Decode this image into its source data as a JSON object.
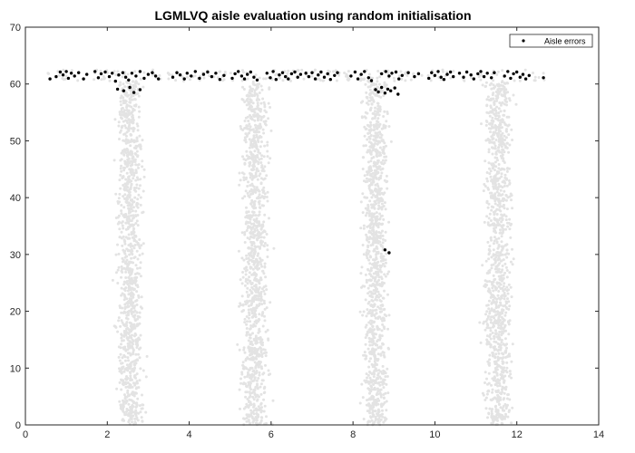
{
  "chart_data": {
    "type": "scatter",
    "title": "LGMLVQ aisle evaluation using random initialisation",
    "xlabel": "",
    "ylabel": "",
    "xlim": [
      0,
      14
    ],
    "ylim": [
      0,
      70
    ],
    "xticks": [
      0,
      2,
      4,
      6,
      8,
      10,
      12,
      14
    ],
    "yticks": [
      0,
      10,
      20,
      30,
      40,
      50,
      60,
      70
    ],
    "grid": false,
    "legend": {
      "position": "top-right",
      "entries": [
        "Aisle errors"
      ]
    },
    "series": [
      {
        "name": "Aisle errors",
        "color": "#000000",
        "points": [
          [
            0.6,
            60.9
          ],
          [
            0.75,
            61.3
          ],
          [
            0.85,
            62.1
          ],
          [
            0.92,
            61.6
          ],
          [
            1.0,
            62.2
          ],
          [
            1.05,
            61.0
          ],
          [
            1.12,
            61.9
          ],
          [
            1.2,
            61.4
          ],
          [
            1.3,
            62.0
          ],
          [
            1.42,
            60.9
          ],
          [
            1.5,
            61.7
          ],
          [
            1.7,
            62.2
          ],
          [
            1.78,
            61.1
          ],
          [
            1.85,
            61.8
          ],
          [
            1.95,
            62.1
          ],
          [
            2.05,
            61.3
          ],
          [
            2.12,
            61.9
          ],
          [
            2.2,
            60.5
          ],
          [
            2.28,
            61.6
          ],
          [
            2.38,
            62.0
          ],
          [
            2.45,
            61.2
          ],
          [
            2.52,
            60.7
          ],
          [
            2.6,
            61.9
          ],
          [
            2.7,
            61.4
          ],
          [
            2.8,
            62.2
          ],
          [
            2.9,
            61.0
          ],
          [
            3.0,
            61.7
          ],
          [
            3.1,
            62.0
          ],
          [
            3.18,
            61.4
          ],
          [
            3.25,
            60.9
          ],
          [
            2.25,
            59.1
          ],
          [
            2.4,
            58.8
          ],
          [
            2.55,
            59.4
          ],
          [
            2.65,
            58.5
          ],
          [
            2.8,
            59.0
          ],
          [
            3.6,
            61.2
          ],
          [
            3.7,
            62.0
          ],
          [
            3.78,
            61.6
          ],
          [
            3.88,
            60.9
          ],
          [
            3.95,
            61.9
          ],
          [
            4.05,
            61.4
          ],
          [
            4.15,
            62.2
          ],
          [
            4.25,
            61.0
          ],
          [
            4.35,
            61.7
          ],
          [
            4.45,
            62.1
          ],
          [
            4.55,
            61.3
          ],
          [
            4.65,
            61.9
          ],
          [
            4.75,
            60.8
          ],
          [
            4.85,
            61.5
          ],
          [
            5.05,
            61.0
          ],
          [
            5.12,
            61.8
          ],
          [
            5.2,
            62.2
          ],
          [
            5.28,
            61.4
          ],
          [
            5.35,
            60.9
          ],
          [
            5.42,
            61.7
          ],
          [
            5.5,
            62.1
          ],
          [
            5.58,
            61.2
          ],
          [
            5.66,
            60.7
          ],
          [
            5.9,
            61.9
          ],
          [
            5.98,
            61.1
          ],
          [
            6.05,
            62.2
          ],
          [
            6.12,
            60.8
          ],
          [
            6.2,
            61.6
          ],
          [
            6.28,
            62.0
          ],
          [
            6.35,
            61.3
          ],
          [
            6.42,
            60.9
          ],
          [
            6.5,
            61.8
          ],
          [
            6.58,
            62.1
          ],
          [
            6.65,
            61.2
          ],
          [
            6.72,
            61.7
          ],
          [
            6.85,
            61.9
          ],
          [
            6.92,
            61.3
          ],
          [
            7.0,
            62.0
          ],
          [
            7.08,
            60.9
          ],
          [
            7.15,
            61.6
          ],
          [
            7.22,
            62.1
          ],
          [
            7.3,
            61.2
          ],
          [
            7.38,
            61.8
          ],
          [
            7.45,
            60.8
          ],
          [
            7.55,
            61.5
          ],
          [
            7.62,
            62.0
          ],
          [
            7.95,
            61.4
          ],
          [
            8.05,
            62.1
          ],
          [
            8.12,
            60.9
          ],
          [
            8.2,
            61.7
          ],
          [
            8.28,
            62.2
          ],
          [
            8.38,
            61.1
          ],
          [
            8.45,
            60.6
          ],
          [
            8.55,
            59.0
          ],
          [
            8.62,
            58.6
          ],
          [
            8.7,
            59.4
          ],
          [
            8.78,
            58.4
          ],
          [
            8.85,
            59.1
          ],
          [
            8.92,
            58.8
          ],
          [
            9.02,
            59.3
          ],
          [
            9.1,
            58.2
          ],
          [
            8.7,
            61.8
          ],
          [
            8.8,
            62.2
          ],
          [
            8.88,
            61.4
          ],
          [
            8.95,
            61.9
          ],
          [
            9.05,
            62.1
          ],
          [
            9.12,
            60.9
          ],
          [
            9.2,
            61.5
          ],
          [
            9.35,
            62.0
          ],
          [
            9.5,
            61.3
          ],
          [
            9.6,
            61.8
          ],
          [
            9.85,
            61.0
          ],
          [
            9.92,
            62.0
          ],
          [
            10.0,
            61.5
          ],
          [
            10.08,
            62.2
          ],
          [
            10.15,
            61.2
          ],
          [
            10.22,
            60.8
          ],
          [
            10.3,
            61.7
          ],
          [
            10.38,
            62.1
          ],
          [
            10.45,
            61.3
          ],
          [
            10.6,
            61.9
          ],
          [
            10.7,
            61.2
          ],
          [
            10.78,
            62.1
          ],
          [
            10.88,
            61.6
          ],
          [
            10.95,
            60.9
          ],
          [
            11.05,
            61.8
          ],
          [
            11.12,
            62.2
          ],
          [
            11.2,
            61.3
          ],
          [
            11.28,
            61.9
          ],
          [
            11.38,
            61.1
          ],
          [
            11.45,
            62.0
          ],
          [
            11.7,
            61.4
          ],
          [
            11.78,
            62.2
          ],
          [
            11.85,
            61.0
          ],
          [
            11.92,
            61.8
          ],
          [
            12.0,
            62.1
          ],
          [
            12.08,
            61.2
          ],
          [
            12.15,
            61.7
          ],
          [
            12.22,
            60.9
          ],
          [
            12.3,
            61.5
          ],
          [
            12.65,
            61.1
          ],
          [
            8.78,
            30.8
          ],
          [
            8.88,
            30.3
          ]
        ]
      }
    ],
    "background_points": {
      "color": "#e3e3e3",
      "description_hidden": true,
      "bands": [
        {
          "x_center": 2.55,
          "x_spread": 0.45,
          "y_min": 0,
          "y_max": 60.5,
          "count": 1100
        },
        {
          "x_center": 5.6,
          "x_spread": 0.48,
          "y_min": 0,
          "y_max": 60.5,
          "count": 1100
        },
        {
          "x_center": 8.55,
          "x_spread": 0.45,
          "y_min": 0,
          "y_max": 60.5,
          "count": 1100
        },
        {
          "x_center": 11.55,
          "x_spread": 0.5,
          "y_min": 0,
          "y_max": 60.5,
          "count": 1100
        }
      ],
      "top_band": {
        "x_min": 0.55,
        "x_max": 12.7,
        "y_min": 60.5,
        "y_max": 62.5,
        "count": 220
      }
    }
  }
}
